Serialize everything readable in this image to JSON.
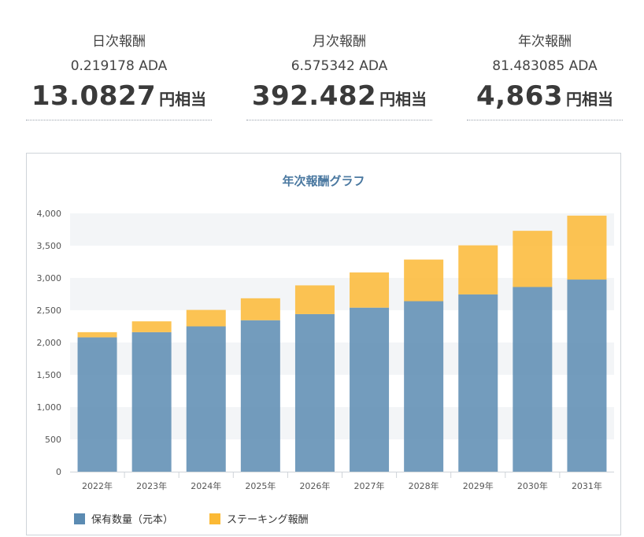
{
  "summary": {
    "daily": {
      "label": "日次報酬",
      "ada": "0.219178 ADA",
      "yen": "13.0827",
      "unit": "円相当"
    },
    "monthly": {
      "label": "月次報酬",
      "ada": "6.575342 ADA",
      "yen": "392.482",
      "unit": "円相当"
    },
    "yearly": {
      "label": "年次報酬",
      "ada": "81.483085 ADA",
      "yen": "4,863",
      "unit": "円相当"
    }
  },
  "chart_data": {
    "type": "bar",
    "stacked": true,
    "title": "年次報酬グラフ",
    "categories": [
      "2022年",
      "2023年",
      "2024年",
      "2025年",
      "2026年",
      "2027年",
      "2028年",
      "2029年",
      "2030年",
      "2031年"
    ],
    "series": [
      {
        "name": "保有数量（元本）",
        "color": "#5b8bb2",
        "values": [
          2080,
          2160,
          2250,
          2345,
          2440,
          2540,
          2640,
          2745,
          2860,
          2975
        ]
      },
      {
        "name": "ステーキング報酬",
        "color": "#fbb935",
        "values": [
          80,
          168,
          255,
          340,
          445,
          545,
          645,
          760,
          870,
          990
        ]
      }
    ],
    "ylim": [
      0,
      4000
    ],
    "yticks": [
      "0",
      "500",
      "1,000",
      "1,500",
      "2,000",
      "2,500",
      "3,000",
      "3,500",
      "4,000"
    ],
    "grid": "alternating-bands",
    "legend": "bottom-left"
  }
}
